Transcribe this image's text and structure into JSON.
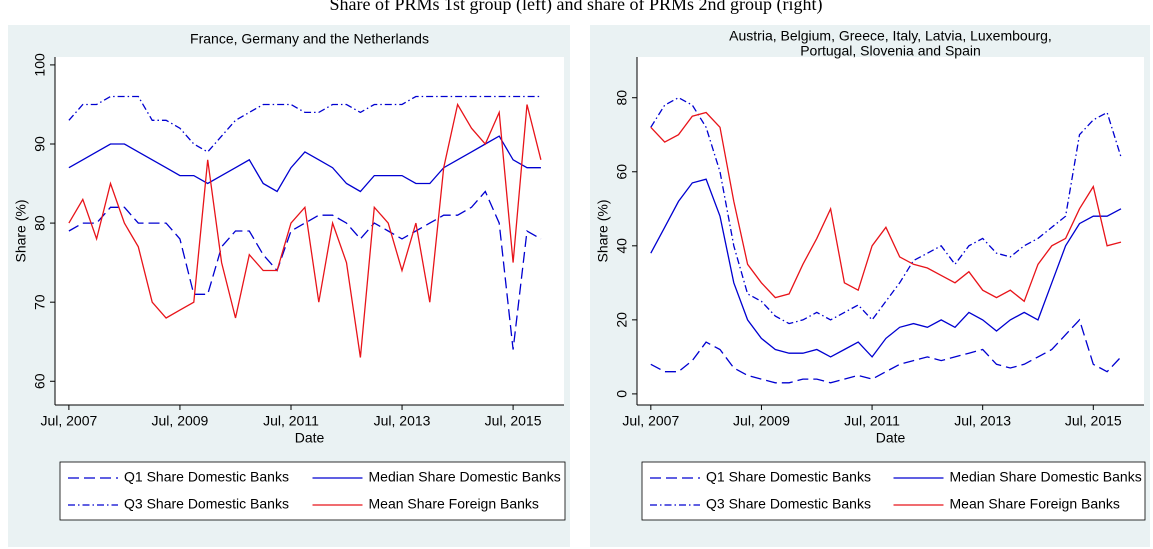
{
  "title": "Share of PRMs 1st group (left) and share of PRMs 2nd group (right)",
  "chart_data": [
    {
      "type": "line",
      "title": [
        "France, Germany and the Netherlands"
      ],
      "xlabel": "Date",
      "ylabel": "Share (%)",
      "x": [
        "2007-07",
        "2007-10",
        "2008-01",
        "2008-04",
        "2008-07",
        "2008-10",
        "2009-01",
        "2009-04",
        "2009-07",
        "2009-10",
        "2010-01",
        "2010-04",
        "2010-07",
        "2010-10",
        "2011-01",
        "2011-04",
        "2011-07",
        "2011-10",
        "2012-01",
        "2012-04",
        "2012-07",
        "2012-10",
        "2013-01",
        "2013-04",
        "2013-07",
        "2013-10",
        "2014-01",
        "2014-04",
        "2014-07",
        "2014-10",
        "2015-01",
        "2015-04",
        "2015-07",
        "2015-10",
        "2016-01"
      ],
      "xlim": [
        "2007-04",
        "2016-06"
      ],
      "xticks": [
        {
          "value": "2007-07",
          "label": "Jul, 2007"
        },
        {
          "value": "2009-07",
          "label": "Jul, 2009"
        },
        {
          "value": "2011-07",
          "label": "Jul, 2011"
        },
        {
          "value": "2013-07",
          "label": "Jul, 2013"
        },
        {
          "value": "2015-07",
          "label": "Jul, 2015"
        }
      ],
      "ylim": [
        57,
        101
      ],
      "yticks": [
        60,
        70,
        80,
        90,
        100
      ],
      "legend_position": "bottom",
      "series": [
        {
          "name": "Q1 Share Domestic Banks",
          "color": "#0000d0",
          "dash": "longdash",
          "values": [
            79,
            80,
            80,
            82,
            82,
            80,
            80,
            80,
            78,
            71,
            71,
            77,
            79,
            79,
            76,
            74,
            79,
            80,
            81,
            81,
            80,
            78,
            80,
            79,
            78,
            79,
            80,
            81,
            81,
            82,
            84,
            80,
            64,
            79,
            78
          ]
        },
        {
          "name": "Median Share Domestic Banks",
          "color": "#0000d0",
          "dash": "solid",
          "values": [
            87,
            88,
            89,
            90,
            90,
            89,
            88,
            87,
            86,
            86,
            85,
            86,
            87,
            88,
            85,
            84,
            87,
            89,
            88,
            87,
            85,
            84,
            86,
            86,
            86,
            85,
            85,
            87,
            88,
            89,
            90,
            91,
            88,
            87,
            87
          ]
        },
        {
          "name": "Q3 Share Domestic Banks",
          "color": "#0000d0",
          "dash": "dashdot",
          "values": [
            93,
            95,
            95,
            96,
            96,
            96,
            93,
            93,
            92,
            90,
            89,
            91,
            93,
            94,
            95,
            95,
            95,
            94,
            94,
            95,
            95,
            94,
            95,
            95,
            95,
            96,
            96,
            96,
            96,
            96,
            96,
            96,
            96,
            96,
            96
          ]
        },
        {
          "name": "Mean Share Foreign Banks",
          "color": "#e8141a",
          "dash": "solid",
          "values": [
            80,
            83,
            78,
            85,
            80,
            77,
            70,
            68,
            69,
            70,
            88,
            75,
            68,
            76,
            74,
            74,
            80,
            82,
            70,
            80,
            75,
            63,
            82,
            80,
            74,
            80,
            70,
            87,
            95,
            92,
            90,
            94,
            75,
            95,
            88
          ]
        }
      ]
    },
    {
      "type": "line",
      "title": [
        "Austria, Belgium, Greece, Italy, Latvia, Luxembourg,",
        "Portugal, Slovenia and Spain"
      ],
      "xlabel": "Date",
      "ylabel": "Share (%)",
      "x": [
        "2007-07",
        "2007-10",
        "2008-01",
        "2008-04",
        "2008-07",
        "2008-10",
        "2009-01",
        "2009-04",
        "2009-07",
        "2009-10",
        "2010-01",
        "2010-04",
        "2010-07",
        "2010-10",
        "2011-01",
        "2011-04",
        "2011-07",
        "2011-10",
        "2012-01",
        "2012-04",
        "2012-07",
        "2012-10",
        "2013-01",
        "2013-04",
        "2013-07",
        "2013-10",
        "2014-01",
        "2014-04",
        "2014-07",
        "2014-10",
        "2015-01",
        "2015-04",
        "2015-07",
        "2015-10",
        "2016-01"
      ],
      "xlim": [
        "2007-04",
        "2016-06"
      ],
      "xticks": [
        {
          "value": "2007-07",
          "label": "Jul, 2007"
        },
        {
          "value": "2009-07",
          "label": "Jul, 2009"
        },
        {
          "value": "2011-07",
          "label": "Jul, 2011"
        },
        {
          "value": "2013-07",
          "label": "Jul, 2013"
        },
        {
          "value": "2015-07",
          "label": "Jul, 2015"
        }
      ],
      "ylim": [
        -3,
        91
      ],
      "yticks": [
        0,
        20,
        40,
        60,
        80
      ],
      "legend_position": "bottom",
      "series": [
        {
          "name": "Q1 Share Domestic Banks",
          "color": "#0000d0",
          "dash": "longdash",
          "values": [
            8,
            6,
            6,
            9,
            14,
            12,
            7,
            5,
            4,
            3,
            3,
            4,
            4,
            3,
            4,
            5,
            4,
            6,
            8,
            9,
            10,
            9,
            10,
            11,
            12,
            8,
            7,
            8,
            10,
            12,
            16,
            20,
            8,
            6,
            10
          ]
        },
        {
          "name": "Median Share Domestic Banks",
          "color": "#0000d0",
          "dash": "solid",
          "values": [
            38,
            45,
            52,
            57,
            58,
            48,
            30,
            20,
            15,
            12,
            11,
            11,
            12,
            10,
            12,
            14,
            10,
            15,
            18,
            19,
            18,
            20,
            18,
            22,
            20,
            17,
            20,
            22,
            20,
            30,
            40,
            46,
            48,
            48,
            50
          ]
        },
        {
          "name": "Q3 Share Domestic Banks",
          "color": "#0000d0",
          "dash": "dashdot",
          "values": [
            72,
            78,
            80,
            78,
            72,
            60,
            40,
            27,
            25,
            21,
            19,
            20,
            22,
            20,
            22,
            24,
            20,
            25,
            30,
            36,
            38,
            40,
            35,
            40,
            42,
            38,
            37,
            40,
            42,
            45,
            48,
            70,
            74,
            76,
            64
          ]
        },
        {
          "name": "Mean Share Foreign Banks",
          "color": "#e8141a",
          "dash": "solid",
          "values": [
            72,
            68,
            70,
            75,
            76,
            72,
            52,
            35,
            30,
            26,
            27,
            35,
            42,
            50,
            30,
            28,
            40,
            45,
            37,
            35,
            34,
            32,
            30,
            33,
            28,
            26,
            28,
            25,
            35,
            40,
            42,
            50,
            56,
            40,
            41
          ]
        }
      ]
    }
  ]
}
